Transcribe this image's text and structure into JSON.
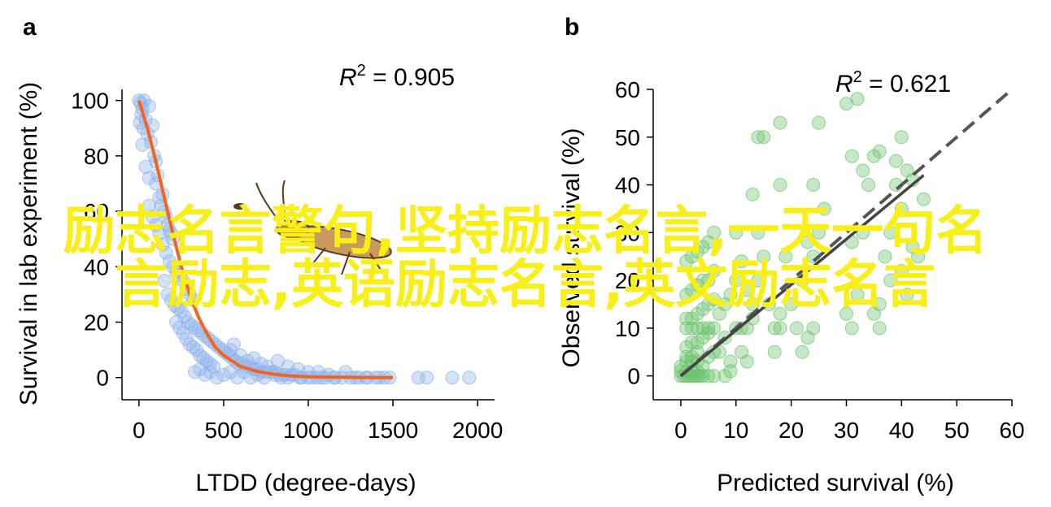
{
  "overlay": {
    "line1": "励志名言警句,坚持励志名言,一天一句名",
    "line2": "言励志,英语励志名言,英文励志名言"
  },
  "chart_data": [
    {
      "panel": "a",
      "type": "scatter",
      "annotation": "R² = 0.905",
      "xlabel": "LTDD (degree-days)",
      "ylabel": "Survival in lab experiment (%)",
      "xlim": [
        -100,
        2100
      ],
      "ylim": [
        -8,
        104
      ],
      "xticks": [
        0,
        500,
        1000,
        1500,
        2000
      ],
      "yticks": [
        0,
        20,
        40,
        60,
        80,
        100
      ],
      "grid": false,
      "point_color": "#8fb2ea",
      "fit_color": "#f0661f",
      "points": [
        [
          0,
          100
        ],
        [
          10,
          99
        ],
        [
          20,
          97
        ],
        [
          30,
          100
        ],
        [
          5,
          92
        ],
        [
          15,
          95
        ],
        [
          25,
          90
        ],
        [
          40,
          93
        ],
        [
          50,
          88
        ],
        [
          60,
          98
        ],
        [
          70,
          85
        ],
        [
          80,
          91
        ],
        [
          90,
          80
        ],
        [
          100,
          78
        ],
        [
          20,
          84
        ],
        [
          40,
          76
        ],
        [
          60,
          72
        ],
        [
          100,
          70
        ],
        [
          110,
          73
        ],
        [
          120,
          65
        ],
        [
          130,
          62
        ],
        [
          140,
          66
        ],
        [
          150,
          60
        ],
        [
          160,
          58
        ],
        [
          170,
          55
        ],
        [
          180,
          53
        ],
        [
          190,
          52
        ],
        [
          200,
          50
        ],
        [
          60,
          62
        ],
        [
          80,
          58
        ],
        [
          100,
          55
        ],
        [
          120,
          52
        ],
        [
          140,
          48
        ],
        [
          160,
          45
        ],
        [
          180,
          42
        ],
        [
          200,
          40
        ],
        [
          220,
          38
        ],
        [
          240,
          37
        ],
        [
          260,
          35
        ],
        [
          280,
          32
        ],
        [
          300,
          30
        ],
        [
          320,
          28
        ],
        [
          150,
          35
        ],
        [
          170,
          30
        ],
        [
          190,
          28
        ],
        [
          210,
          26
        ],
        [
          230,
          25
        ],
        [
          250,
          24
        ],
        [
          270,
          22
        ],
        [
          290,
          20
        ],
        [
          310,
          19
        ],
        [
          330,
          18
        ],
        [
          350,
          17
        ],
        [
          370,
          16
        ],
        [
          390,
          15
        ],
        [
          410,
          14
        ],
        [
          430,
          13
        ],
        [
          450,
          12
        ],
        [
          470,
          11
        ],
        [
          490,
          10
        ],
        [
          510,
          9
        ],
        [
          530,
          8
        ],
        [
          550,
          7
        ],
        [
          570,
          6
        ],
        [
          590,
          5
        ],
        [
          610,
          5
        ],
        [
          630,
          4
        ],
        [
          650,
          4
        ],
        [
          680,
          3
        ],
        [
          700,
          3
        ],
        [
          720,
          2
        ],
        [
          750,
          2
        ],
        [
          780,
          2
        ],
        [
          800,
          1
        ],
        [
          830,
          1
        ],
        [
          860,
          1
        ],
        [
          900,
          1
        ],
        [
          950,
          0
        ],
        [
          1000,
          0
        ],
        [
          1050,
          0
        ],
        [
          1100,
          0
        ],
        [
          1150,
          0
        ],
        [
          1200,
          0
        ],
        [
          1250,
          0
        ],
        [
          1300,
          0
        ],
        [
          1350,
          0
        ],
        [
          1400,
          0
        ],
        [
          1450,
          0
        ],
        [
          1650,
          0
        ],
        [
          1700,
          0
        ],
        [
          1850,
          0
        ],
        [
          1950,
          0
        ],
        [
          330,
          2
        ],
        [
          360,
          3
        ],
        [
          390,
          1
        ],
        [
          420,
          2
        ],
        [
          460,
          0
        ],
        [
          500,
          1
        ],
        [
          540,
          2
        ],
        [
          580,
          0
        ],
        [
          620,
          2
        ],
        [
          660,
          0
        ],
        [
          700,
          1
        ],
        [
          740,
          0
        ],
        [
          800,
          2
        ],
        [
          840,
          0
        ],
        [
          880,
          0
        ],
        [
          920,
          1
        ],
        [
          960,
          0
        ],
        [
          1020,
          0
        ],
        [
          1080,
          0
        ],
        [
          1160,
          0
        ],
        [
          1220,
          2
        ],
        [
          1280,
          0
        ],
        [
          1340,
          0
        ],
        [
          1420,
          0
        ],
        [
          1480,
          0
        ],
        [
          220,
          20
        ],
        [
          240,
          18
        ],
        [
          260,
          16
        ],
        [
          280,
          14
        ],
        [
          300,
          12
        ],
        [
          320,
          11
        ],
        [
          340,
          10
        ],
        [
          360,
          8
        ],
        [
          380,
          7
        ],
        [
          400,
          6
        ],
        [
          420,
          5
        ],
        [
          440,
          4
        ],
        [
          540,
          10
        ],
        [
          560,
          12
        ],
        [
          600,
          8
        ],
        [
          640,
          6
        ],
        [
          680,
          7
        ],
        [
          720,
          5
        ],
        [
          760,
          4
        ],
        [
          820,
          6
        ],
        [
          880,
          4
        ],
        [
          940,
          3
        ],
        [
          1000,
          2
        ],
        [
          1060,
          2
        ],
        [
          1120,
          1
        ]
      ],
      "fit": [
        [
          0,
          100
        ],
        [
          50,
          90
        ],
        [
          100,
          78
        ],
        [
          150,
          65
        ],
        [
          200,
          52
        ],
        [
          250,
          40
        ],
        [
          300,
          30
        ],
        [
          350,
          22
        ],
        [
          400,
          16
        ],
        [
          450,
          11
        ],
        [
          500,
          8
        ],
        [
          600,
          4
        ],
        [
          700,
          2.2
        ],
        [
          800,
          1.2
        ],
        [
          900,
          0.6
        ],
        [
          1000,
          0.3
        ],
        [
          1200,
          0.1
        ],
        [
          1500,
          0
        ]
      ]
    },
    {
      "panel": "b",
      "type": "scatter",
      "annotation": "R² = 0.621",
      "xlabel": "Predicted survival (%)",
      "ylabel": "Observed survival (%)",
      "xlim": [
        -5,
        60
      ],
      "ylim": [
        -5,
        60
      ],
      "xticks": [
        0,
        10,
        20,
        30,
        40,
        50,
        60
      ],
      "yticks": [
        0,
        10,
        20,
        30,
        40,
        50,
        60
      ],
      "grid": false,
      "point_color": "#6cc36c",
      "line_color": "#555555",
      "points": [
        [
          0,
          0
        ],
        [
          0.5,
          0
        ],
        [
          1,
          0
        ],
        [
          1.5,
          0
        ],
        [
          2,
          0
        ],
        [
          2.5,
          0
        ],
        [
          3,
          0
        ],
        [
          3.5,
          0
        ],
        [
          4,
          0
        ],
        [
          5,
          0
        ],
        [
          6,
          0
        ],
        [
          0,
          1
        ],
        [
          1,
          1
        ],
        [
          2,
          1
        ],
        [
          3,
          1
        ],
        [
          4,
          2
        ],
        [
          0,
          2
        ],
        [
          1,
          3
        ],
        [
          2,
          3
        ],
        [
          3,
          3
        ],
        [
          1,
          4
        ],
        [
          2,
          4
        ],
        [
          3,
          5
        ],
        [
          1,
          6
        ],
        [
          2,
          7
        ],
        [
          3,
          7
        ],
        [
          4,
          8
        ],
        [
          5,
          9
        ],
        [
          1,
          10
        ],
        [
          2,
          10
        ],
        [
          3,
          10
        ],
        [
          4,
          10
        ],
        [
          5,
          10
        ],
        [
          6,
          10
        ],
        [
          1,
          12
        ],
        [
          2,
          12
        ],
        [
          3,
          13
        ],
        [
          4,
          14
        ],
        [
          5,
          15
        ],
        [
          6,
          16
        ],
        [
          1,
          17
        ],
        [
          2,
          18
        ],
        [
          3,
          19
        ],
        [
          4,
          20
        ],
        [
          5,
          20
        ],
        [
          6,
          22
        ],
        [
          1,
          24
        ],
        [
          2,
          25
        ],
        [
          3,
          26
        ],
        [
          4,
          27
        ],
        [
          5,
          28
        ],
        [
          6,
          30
        ],
        [
          7,
          5
        ],
        [
          8,
          8
        ],
        [
          9,
          3
        ],
        [
          10,
          10
        ],
        [
          11,
          10
        ],
        [
          12,
          10
        ],
        [
          13,
          15
        ],
        [
          14,
          20
        ],
        [
          15,
          25
        ],
        [
          14,
          30
        ],
        [
          13,
          38
        ],
        [
          14,
          50
        ],
        [
          15,
          50
        ],
        [
          18,
          40
        ],
        [
          16,
          15
        ],
        [
          17,
          10
        ],
        [
          18,
          10
        ],
        [
          17,
          5
        ],
        [
          18,
          13
        ],
        [
          19,
          25
        ],
        [
          18,
          53
        ],
        [
          23,
          28
        ],
        [
          24,
          25
        ],
        [
          25,
          30
        ],
        [
          24,
          40
        ],
        [
          25,
          53
        ],
        [
          26,
          35
        ],
        [
          30,
          57
        ],
        [
          31,
          46
        ],
        [
          32,
          58
        ],
        [
          33,
          43
        ],
        [
          34,
          40
        ],
        [
          35,
          46
        ],
        [
          36,
          47
        ],
        [
          37,
          25
        ],
        [
          38,
          30
        ],
        [
          39,
          45
        ],
        [
          40,
          50
        ],
        [
          41,
          43
        ],
        [
          42,
          41
        ],
        [
          44,
          37
        ],
        [
          30,
          13
        ],
        [
          31,
          10
        ],
        [
          32,
          17
        ],
        [
          35,
          13
        ],
        [
          36,
          10
        ],
        [
          36,
          15
        ],
        [
          38,
          20
        ],
        [
          40,
          22
        ],
        [
          41,
          17
        ],
        [
          42,
          27
        ],
        [
          43,
          25
        ],
        [
          31,
          28
        ],
        [
          33,
          30
        ],
        [
          40,
          35
        ],
        [
          39,
          40
        ],
        [
          20,
          15
        ],
        [
          22,
          20
        ],
        [
          21,
          10
        ],
        [
          22,
          5
        ],
        [
          23,
          8
        ],
        [
          24,
          10
        ],
        [
          8,
          15
        ],
        [
          9,
          17
        ],
        [
          10,
          20
        ],
        [
          11,
          24
        ],
        [
          12,
          18
        ],
        [
          13,
          12
        ],
        [
          7,
          13
        ],
        [
          8,
          0
        ],
        [
          9,
          1
        ],
        [
          10,
          30
        ],
        [
          11,
          5
        ],
        [
          12,
          3
        ],
        [
          6,
          5
        ],
        [
          5,
          4
        ]
      ],
      "line": [
        [
          0,
          0
        ],
        [
          60,
          60
        ]
      ],
      "fit_segment": [
        [
          0,
          0
        ],
        [
          44,
          42
        ]
      ]
    }
  ],
  "labels": {
    "panel_a": "a",
    "panel_b": "b"
  }
}
